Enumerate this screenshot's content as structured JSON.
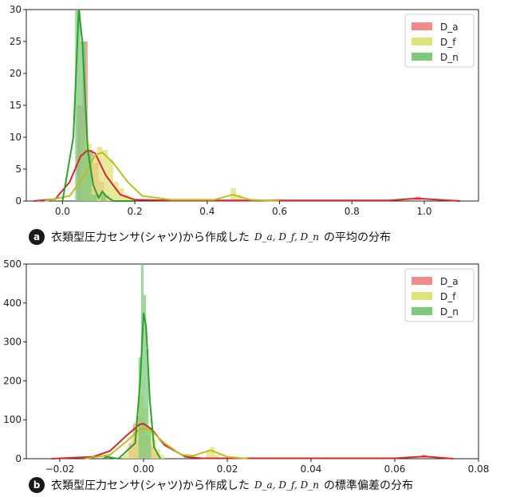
{
  "chart_data": [
    {
      "type": "histogram_kde",
      "badge": "a",
      "caption_before": "衣類型圧力センサ(シャツ)から作成した",
      "caption_math": "D_a, D_f, D_n",
      "caption_after": "の平均の分布",
      "xlim": [
        -0.1,
        1.15
      ],
      "ylim": [
        0,
        30
      ],
      "xticks": [
        0.0,
        0.2,
        0.4,
        0.6,
        0.8,
        1.0
      ],
      "xtick_labels": [
        "0.0",
        "0.2",
        "0.4",
        "0.6",
        "0.8",
        "1.0"
      ],
      "yticks": [
        0,
        5,
        10,
        15,
        20,
        25,
        30
      ],
      "ytick_labels": [
        "0",
        "5",
        "10",
        "15",
        "20",
        "25",
        "30"
      ],
      "legend": "top-right",
      "series": [
        {
          "name": "D_a",
          "color": "#d62728",
          "hist_color": "#ee8c8c",
          "bins": [
            [
              0.04,
              0.055,
              15
            ],
            [
              0.055,
              0.07,
              25
            ],
            [
              0.07,
              0.085,
              8
            ],
            [
              0.085,
              0.1,
              6
            ],
            [
              0.1,
              0.115,
              3
            ],
            [
              0.115,
              0.13,
              1
            ],
            [
              0.975,
              0.99,
              0.7
            ]
          ],
          "kde": [
            [
              -0.08,
              0
            ],
            [
              -0.02,
              0.3
            ],
            [
              0.02,
              3
            ],
            [
              0.05,
              7
            ],
            [
              0.07,
              8
            ],
            [
              0.09,
              7.5
            ],
            [
              0.12,
              4
            ],
            [
              0.16,
              1
            ],
            [
              0.2,
              0.2
            ],
            [
              0.3,
              0.1
            ],
            [
              0.9,
              0.1
            ],
            [
              0.98,
              0.4
            ],
            [
              1.1,
              0
            ]
          ]
        },
        {
          "name": "D_f",
          "color": "#bcbd22",
          "hist_color": "#e0e27a",
          "bins": [
            [
              0.05,
              0.065,
              11
            ],
            [
              0.065,
              0.08,
              9
            ],
            [
              0.08,
              0.095,
              7
            ],
            [
              0.095,
              0.11,
              8.5
            ],
            [
              0.11,
              0.125,
              8
            ],
            [
              0.125,
              0.14,
              6.5
            ],
            [
              0.14,
              0.155,
              3
            ],
            [
              0.155,
              0.17,
              2
            ],
            [
              0.17,
              0.185,
              1
            ],
            [
              0.185,
              0.2,
              0.4
            ],
            [
              0.465,
              0.48,
              2
            ],
            [
              0.48,
              0.495,
              1
            ]
          ],
          "kde": [
            [
              -0.05,
              0
            ],
            [
              0.02,
              0.8
            ],
            [
              0.06,
              4
            ],
            [
              0.09,
              7.2
            ],
            [
              0.11,
              7.6
            ],
            [
              0.14,
              6
            ],
            [
              0.18,
              3
            ],
            [
              0.22,
              0.8
            ],
            [
              0.3,
              0.2
            ],
            [
              0.42,
              0.2
            ],
            [
              0.47,
              1
            ],
            [
              0.52,
              0.2
            ],
            [
              0.6,
              0
            ]
          ]
        },
        {
          "name": "D_n",
          "color": "#2ca02c",
          "hist_color": "#7dc97d",
          "bins": [
            [
              0.035,
              0.05,
              30
            ],
            [
              0.05,
              0.065,
              25
            ],
            [
              0.065,
              0.08,
              8
            ],
            [
              0.08,
              0.095,
              1
            ],
            [
              0.105,
              0.12,
              1.2
            ]
          ],
          "kde": [
            [
              0.0,
              0
            ],
            [
              0.03,
              10
            ],
            [
              0.045,
              30
            ],
            [
              0.055,
              25
            ],
            [
              0.07,
              8
            ],
            [
              0.085,
              2.5
            ],
            [
              0.1,
              0.5
            ],
            [
              0.11,
              1.5
            ],
            [
              0.12,
              0.8
            ],
            [
              0.14,
              0
            ],
            [
              0.2,
              0
            ]
          ]
        }
      ]
    },
    {
      "type": "histogram_kde",
      "badge": "b",
      "caption_before": "衣類型圧力センサ(シャツ)から作成した",
      "caption_math": "D_a, D_f, D_n",
      "caption_after": "の標準偏差の分布",
      "xlim": [
        -0.028,
        0.08
      ],
      "ylim": [
        0,
        500
      ],
      "xticks": [
        -0.02,
        0.0,
        0.02,
        0.04,
        0.06,
        0.08
      ],
      "xtick_labels": [
        "−0.02",
        "0.00",
        "0.02",
        "0.04",
        "0.06",
        "0.08"
      ],
      "yticks": [
        0,
        100,
        200,
        300,
        400,
        500
      ],
      "ytick_labels": [
        "0",
        "100",
        "200",
        "300",
        "400",
        "500"
      ],
      "legend": "top-right",
      "series": [
        {
          "name": "D_a",
          "color": "#d62728",
          "hist_color": "#ee8c8c",
          "bins": [
            [
              -0.0035,
              -0.0025,
              40
            ],
            [
              -0.0025,
              -0.0015,
              90
            ],
            [
              -0.0015,
              -0.0005,
              110
            ],
            [
              -0.0005,
              0.0005,
              105
            ],
            [
              0.0005,
              0.0015,
              60
            ],
            [
              0.0015,
              0.0025,
              30
            ],
            [
              0.0025,
              0.0035,
              15
            ],
            [
              0.0665,
              0.0675,
              10
            ]
          ],
          "kde": [
            [
              -0.022,
              0
            ],
            [
              -0.012,
              5
            ],
            [
              -0.008,
              20
            ],
            [
              -0.004,
              60
            ],
            [
              -0.001,
              88
            ],
            [
              0.0,
              90
            ],
            [
              0.002,
              75
            ],
            [
              0.005,
              35
            ],
            [
              0.01,
              5
            ],
            [
              0.014,
              1
            ],
            [
              0.06,
              1
            ],
            [
              0.067,
              6
            ],
            [
              0.074,
              0
            ]
          ]
        },
        {
          "name": "D_f",
          "color": "#bcbd22",
          "hist_color": "#e0e27a",
          "bins": [
            [
              -0.005,
              -0.004,
              10
            ],
            [
              -0.004,
              -0.003,
              30
            ],
            [
              -0.003,
              -0.002,
              60
            ],
            [
              -0.002,
              -0.001,
              100
            ],
            [
              -0.001,
              0.0,
              160
            ],
            [
              0.0,
              0.001,
              130
            ],
            [
              0.001,
              0.002,
              80
            ],
            [
              0.002,
              0.003,
              50
            ],
            [
              0.003,
              0.004,
              25
            ],
            [
              0.004,
              0.005,
              10
            ],
            [
              0.015,
              0.016,
              20
            ],
            [
              0.016,
              0.017,
              30
            ],
            [
              0.017,
              0.018,
              10
            ]
          ],
          "kde": [
            [
              -0.014,
              0
            ],
            [
              -0.008,
              10
            ],
            [
              -0.004,
              45
            ],
            [
              -0.001,
              75
            ],
            [
              0.0,
              78
            ],
            [
              0.002,
              70
            ],
            [
              0.005,
              40
            ],
            [
              0.009,
              10
            ],
            [
              0.012,
              8
            ],
            [
              0.016,
              22
            ],
            [
              0.02,
              5
            ],
            [
              0.025,
              0
            ]
          ]
        },
        {
          "name": "D_n",
          "color": "#2ca02c",
          "hist_color": "#7dc97d",
          "bins": [
            [
              -0.0012,
              -0.0006,
              260
            ],
            [
              -0.0006,
              0.0,
              500
            ],
            [
              0.0,
              0.0006,
              420
            ],
            [
              0.0006,
              0.0012,
              280
            ],
            [
              0.0012,
              0.0018,
              80
            ],
            [
              -0.009,
              -0.008,
              10
            ]
          ],
          "kde": [
            [
              -0.006,
              0
            ],
            [
              -0.002,
              40
            ],
            [
              -0.0008,
              200
            ],
            [
              0.0,
              375
            ],
            [
              0.0006,
              340
            ],
            [
              0.0015,
              150
            ],
            [
              0.0025,
              30
            ],
            [
              0.004,
              0
            ],
            [
              -0.009,
              5
            ],
            [
              -0.0095,
              0
            ]
          ]
        }
      ]
    }
  ]
}
